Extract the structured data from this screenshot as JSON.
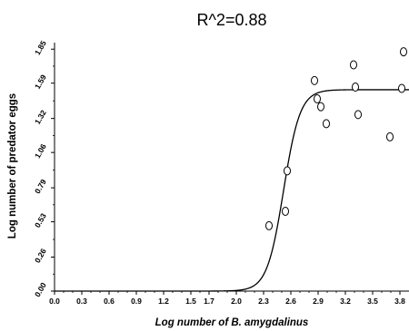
{
  "chart_data": {
    "type": "scatter",
    "title": "R^2=0.88",
    "xlabel": "Log number of B. amygdalinus",
    "ylabel": "Log number of  predator eggs",
    "xlim": [
      0.0,
      3.9
    ],
    "ylim": [
      0.0,
      1.9
    ],
    "x_ticks": [
      "0.0",
      "0.3",
      "0.6",
      "0.9",
      "1.2",
      "1.5",
      "1.7",
      "2.0",
      "2.3",
      "2.6",
      "2.9",
      "3.2",
      "3.5",
      "3.8"
    ],
    "y_ticks": [
      "0.00",
      "0.26",
      "0.53",
      "0.79",
      "1.06",
      "1.32",
      "1.59",
      "1.85"
    ],
    "grid": false,
    "series": [
      {
        "kind": "points",
        "marker": "open-circle",
        "points": [
          {
            "x": 2.36,
            "y": 0.5
          },
          {
            "x": 2.54,
            "y": 0.61
          },
          {
            "x": 2.56,
            "y": 0.92
          },
          {
            "x": 2.86,
            "y": 1.61
          },
          {
            "x": 2.89,
            "y": 1.47
          },
          {
            "x": 2.93,
            "y": 1.41
          },
          {
            "x": 2.99,
            "y": 1.28
          },
          {
            "x": 3.29,
            "y": 1.73
          },
          {
            "x": 3.31,
            "y": 1.56
          },
          {
            "x": 3.34,
            "y": 1.35
          },
          {
            "x": 3.69,
            "y": 1.18
          },
          {
            "x": 3.82,
            "y": 1.55
          },
          {
            "x": 3.84,
            "y": 1.83
          }
        ]
      },
      {
        "kind": "fitted-curve",
        "model": "logistic",
        "asymptote": 1.54,
        "midpoint": 2.52,
        "rate": 11,
        "x_range": [
          0.0,
          3.9
        ]
      }
    ]
  }
}
